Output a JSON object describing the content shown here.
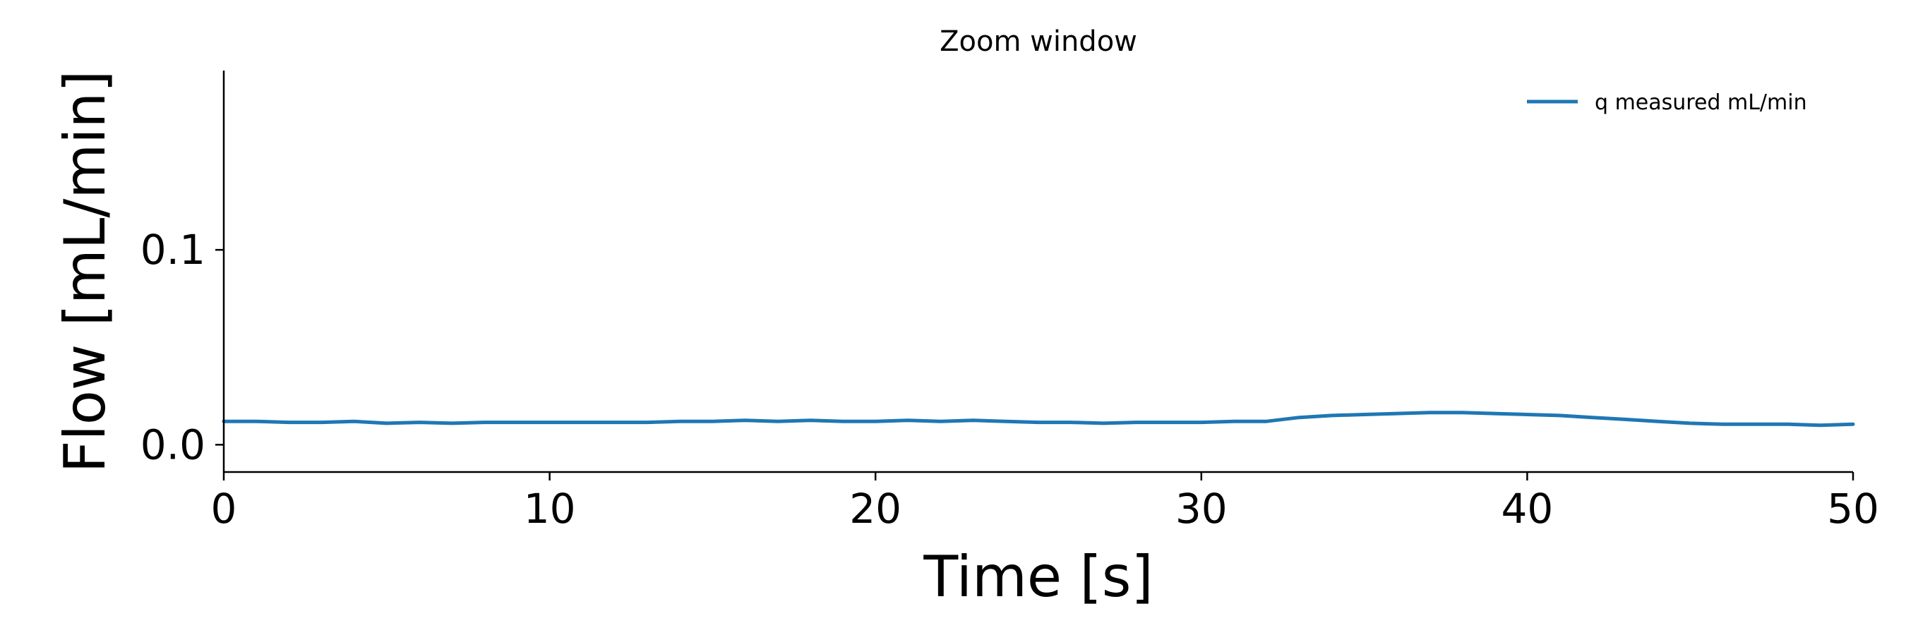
{
  "chart_data": {
    "type": "line",
    "title": "Zoom window",
    "xlabel": "Time [s]",
    "ylabel": "Flow [mL/min]",
    "xlim": [
      0,
      50
    ],
    "ylim": [
      -0.014,
      0.192
    ],
    "xticks": [
      0,
      10,
      20,
      30,
      40,
      50
    ],
    "xtick_labels": [
      "0",
      "10",
      "20",
      "30",
      "40",
      "50"
    ],
    "yticks": [
      0.0,
      0.1
    ],
    "ytick_labels": [
      "0.0",
      "0.1"
    ],
    "grid": false,
    "legend_position": "top-right",
    "series": [
      {
        "name": "q measured mL/min",
        "color": "#1f77b4",
        "x": [
          0,
          1,
          2,
          3,
          4,
          5,
          6,
          7,
          8,
          9,
          10,
          11,
          12,
          13,
          14,
          15,
          16,
          17,
          18,
          19,
          20,
          21,
          22,
          23,
          24,
          25,
          26,
          27,
          28,
          29,
          30,
          31,
          32,
          33,
          34,
          35,
          36,
          37,
          38,
          39,
          40,
          41,
          42,
          43,
          44,
          45,
          46,
          47,
          48,
          49,
          50
        ],
        "y": [
          0.012,
          0.012,
          0.0115,
          0.0115,
          0.012,
          0.011,
          0.0115,
          0.011,
          0.0115,
          0.0115,
          0.0115,
          0.0115,
          0.0115,
          0.0115,
          0.012,
          0.012,
          0.0125,
          0.012,
          0.0125,
          0.012,
          0.012,
          0.0125,
          0.012,
          0.0125,
          0.012,
          0.0115,
          0.0115,
          0.011,
          0.0115,
          0.0115,
          0.0115,
          0.012,
          0.012,
          0.014,
          0.015,
          0.0155,
          0.016,
          0.0165,
          0.0165,
          0.016,
          0.0155,
          0.015,
          0.014,
          0.013,
          0.012,
          0.011,
          0.0105,
          0.0105,
          0.0105,
          0.01,
          0.0105
        ]
      }
    ]
  }
}
